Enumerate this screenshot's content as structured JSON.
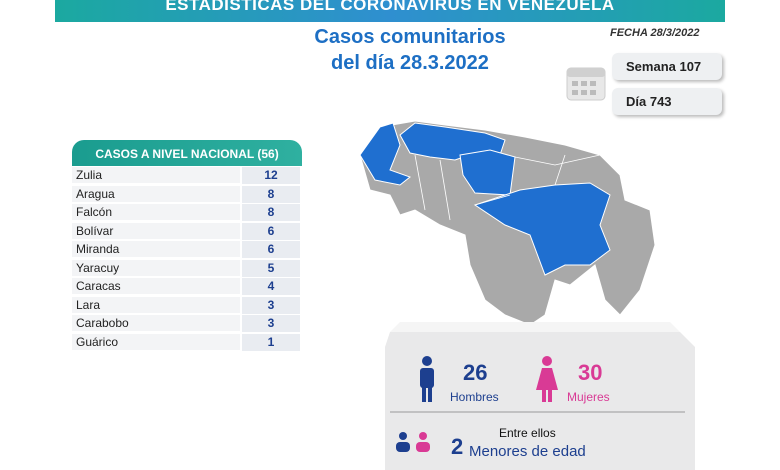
{
  "banner": {
    "title": "ESTADÍSTICAS DEL CORONAVIRUS EN VENEZUELA"
  },
  "header": {
    "title_line1": "Casos comunitarios",
    "title_line2": "del día 28.3.2022",
    "date": "FECHA 28/3/2022",
    "week": "Semana 107",
    "day": "Día 743"
  },
  "table": {
    "title": "CASOS A NIVEL NACIONAL",
    "total": "(56)",
    "rows": [
      [
        "Zulia",
        12
      ],
      [
        "Aragua",
        8
      ],
      [
        "Falcón",
        8
      ],
      [
        "Bolívar",
        6
      ],
      [
        "Miranda",
        6
      ],
      [
        "Yaracuy",
        5
      ],
      [
        "Caracas",
        4
      ],
      [
        "Lara",
        3
      ],
      [
        "Carabobo",
        3
      ],
      [
        "Guárico",
        1
      ]
    ]
  },
  "summary": {
    "men": {
      "value": 26,
      "label": "Hombres"
    },
    "women": {
      "value": 30,
      "label": "Mujeres"
    },
    "minors": {
      "intro": "Entre ellos",
      "value": 2,
      "label": "Menores de edad"
    }
  }
}
